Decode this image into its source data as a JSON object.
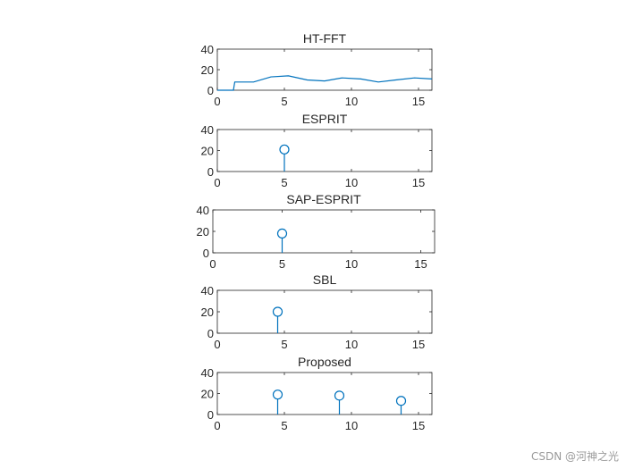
{
  "watermark": "CSDN @河神之光",
  "chart_data": [
    {
      "type": "line",
      "title": "HT-FFT",
      "xlim": [
        0,
        16
      ],
      "ylim": [
        0,
        40
      ],
      "xticks": [
        "0",
        "5",
        "10",
        "15"
      ],
      "yticks": [
        "0",
        "20",
        "40"
      ],
      "color": "#0072BD",
      "series": [
        {
          "x": [
            0,
            1.2,
            1.3,
            2.7,
            4.0,
            5.3,
            6.7,
            8.0,
            9.3,
            10.7,
            12.0,
            13.3,
            14.7,
            16
          ],
          "y": [
            0,
            0,
            8,
            8,
            13,
            14,
            10,
            9,
            12,
            11,
            8,
            10,
            12,
            11
          ]
        }
      ]
    },
    {
      "type": "stem",
      "title": "ESPRIT",
      "xlim": [
        0,
        16
      ],
      "ylim": [
        0,
        40
      ],
      "xticks": [
        "0",
        "5",
        "10",
        "15"
      ],
      "yticks": [
        "0",
        "20",
        "40"
      ],
      "color": "#0072BD",
      "series": [
        {
          "x": [
            5.0
          ],
          "y": [
            21
          ]
        }
      ]
    },
    {
      "type": "stem",
      "title": "SAP-ESPRIT",
      "xlim": [
        0,
        16
      ],
      "ylim": [
        0,
        40
      ],
      "xticks": [
        "0",
        "5",
        "10",
        "15"
      ],
      "yticks": [
        "0",
        "20",
        "40"
      ],
      "color": "#0072BD",
      "series": [
        {
          "x": [
            5.0
          ],
          "y": [
            18
          ]
        }
      ]
    },
    {
      "type": "stem",
      "title": "SBL",
      "xlim": [
        0,
        16
      ],
      "ylim": [
        0,
        40
      ],
      "xticks": [
        "0",
        "5",
        "10",
        "15"
      ],
      "yticks": [
        "0",
        "20",
        "40"
      ],
      "color": "#0072BD",
      "series": [
        {
          "x": [
            4.5
          ],
          "y": [
            20
          ]
        }
      ]
    },
    {
      "type": "stem",
      "title": "Proposed",
      "xlim": [
        0,
        16
      ],
      "ylim": [
        0,
        40
      ],
      "xticks": [
        "0",
        "5",
        "10",
        "15"
      ],
      "yticks": [
        "0",
        "20",
        "40"
      ],
      "color": "#0072BD",
      "series": [
        {
          "x": [
            4.5,
            9.1,
            13.7
          ],
          "y": [
            19,
            18,
            13
          ]
        }
      ]
    }
  ]
}
